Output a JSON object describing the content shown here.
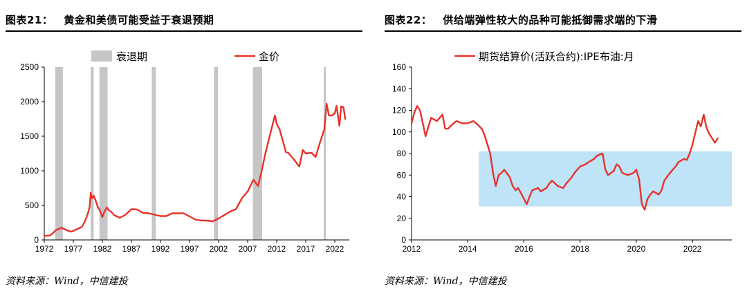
{
  "colors": {
    "series": "#e8322b",
    "recession": "#c6c6c6",
    "band": "#bfe3f7"
  },
  "chart_data": [
    {
      "type": "line",
      "figure_label": "图表21：",
      "title": "黄金和美债可能受益于衰退预期",
      "source": "资料来源：Wind，中信建投",
      "legend": {
        "recession": "衰退期",
        "series": "金价"
      },
      "xlim": [
        1972,
        2024.5
      ],
      "ylim": [
        0,
        2500
      ],
      "xticks": [
        1972,
        1977,
        1982,
        1987,
        1992,
        1997,
        2002,
        2007,
        2012,
        2017,
        2022
      ],
      "yticks": [
        0,
        500,
        1000,
        1500,
        2000,
        2500
      ],
      "recessions": [
        [
          1973.9,
          1975.2
        ],
        [
          1980.0,
          1980.5
        ],
        [
          1981.5,
          1982.9
        ],
        [
          1990.5,
          1991.2
        ],
        [
          2001.2,
          2001.9
        ],
        [
          2007.9,
          2009.5
        ],
        [
          2020.1,
          2020.4
        ]
      ],
      "series": [
        {
          "name": "金价",
          "x": [
            1972,
            1973,
            1973.5,
            1974,
            1974.5,
            1975,
            1976,
            1976.7,
            1977.5,
            1978.5,
            1979,
            1979.5,
            1979.8,
            1980.0,
            1980.2,
            1980.5,
            1980.8,
            1981.2,
            1981.6,
            1982.0,
            1982.4,
            1982.8,
            1983.1,
            1983.5,
            1984,
            1985,
            1986,
            1987,
            1988,
            1989,
            1990,
            1991,
            1992,
            1993,
            1994,
            1995,
            1996,
            1997,
            1998,
            1999,
            2000,
            2001,
            2002,
            2003,
            2004,
            2005,
            2006,
            2007,
            2008,
            2008.8,
            2009.3,
            2010,
            2011,
            2011.7,
            2012,
            2012.5,
            2013,
            2013.6,
            2014,
            2015,
            2015.9,
            2016.5,
            2017,
            2018,
            2018.7,
            2019.5,
            2020.2,
            2020.6,
            2021,
            2021.5,
            2022,
            2022.3,
            2022.8,
            2023.1,
            2023.5,
            2023.8
          ],
          "values": [
            58,
            65,
            100,
            140,
            160,
            175,
            135,
            120,
            150,
            190,
            270,
            380,
            470,
            680,
            600,
            640,
            580,
            480,
            420,
            330,
            420,
            470,
            430,
            410,
            360,
            320,
            365,
            445,
            440,
            390,
            385,
            365,
            345,
            345,
            385,
            385,
            385,
            340,
            295,
            280,
            280,
            270,
            310,
            360,
            410,
            445,
            600,
            700,
            870,
            780,
            950,
            1230,
            1570,
            1800,
            1680,
            1600,
            1450,
            1270,
            1260,
            1160,
            1060,
            1300,
            1250,
            1260,
            1200,
            1420,
            1600,
            1970,
            1800,
            1800,
            1830,
            1940,
            1650,
            1930,
            1920,
            1750
          ]
        }
      ]
    },
    {
      "type": "line",
      "figure_label": "图表22：",
      "title": "供给端弹性较大的品种可能抵御需求端的下滑",
      "source": "资料来源：Wind，中信建投",
      "legend": {
        "series": "期货结算价(活跃合约):IPE布油:月"
      },
      "xlim": [
        2012,
        2023.4
      ],
      "ylim": [
        0,
        160
      ],
      "xticks": [
        2012,
        2014,
        2016,
        2018,
        2020,
        2022
      ],
      "yticks": [
        0,
        20,
        40,
        60,
        80,
        100,
        120,
        140,
        160
      ],
      "band": {
        "x": [
          2014.4,
          2023.4
        ],
        "y": [
          31,
          82
        ]
      },
      "series": [
        {
          "name": "期货结算价(活跃合约):IPE布油:月",
          "x": [
            2012.0,
            2012.1,
            2012.2,
            2012.3,
            2012.5,
            2012.6,
            2012.7,
            2012.9,
            2013.0,
            2013.1,
            2013.2,
            2013.3,
            2013.5,
            2013.6,
            2013.8,
            2013.9,
            2014.0,
            2014.2,
            2014.3,
            2014.5,
            2014.6,
            2014.8,
            2014.9,
            2015.0,
            2015.1,
            2015.2,
            2015.3,
            2015.5,
            2015.6,
            2015.7,
            2015.8,
            2016.0,
            2016.1,
            2016.2,
            2016.3,
            2016.5,
            2016.6,
            2016.8,
            2016.9,
            2017.0,
            2017.2,
            2017.4,
            2017.5,
            2017.7,
            2017.8,
            2018.0,
            2018.2,
            2018.3,
            2018.5,
            2018.6,
            2018.8,
            2018.9,
            2019.0,
            2019.2,
            2019.3,
            2019.4,
            2019.5,
            2019.7,
            2019.9,
            2020.0,
            2020.1,
            2020.2,
            2020.3,
            2020.4,
            2020.5,
            2020.6,
            2020.8,
            2020.9,
            2021.0,
            2021.2,
            2021.4,
            2021.5,
            2021.7,
            2021.8,
            2021.9,
            2022.0,
            2022.2,
            2022.3,
            2022.4,
            2022.5,
            2022.6,
            2022.8,
            2022.9
          ],
          "values": [
            108,
            118,
            124,
            120,
            96,
            105,
            113,
            110,
            113,
            116,
            103,
            103,
            108,
            110,
            108,
            108,
            108,
            110,
            108,
            103,
            97,
            80,
            62,
            50,
            60,
            62,
            65,
            58,
            50,
            46,
            48,
            38,
            33,
            40,
            46,
            48,
            45,
            48,
            52,
            55,
            50,
            48,
            52,
            58,
            62,
            68,
            70,
            72,
            75,
            78,
            80,
            65,
            60,
            64,
            70,
            68,
            62,
            60,
            62,
            65,
            56,
            33,
            28,
            38,
            42,
            45,
            42,
            46,
            55,
            62,
            68,
            72,
            75,
            74,
            80,
            88,
            110,
            105,
            116,
            104,
            98,
            90,
            94
          ]
        }
      ]
    }
  ]
}
